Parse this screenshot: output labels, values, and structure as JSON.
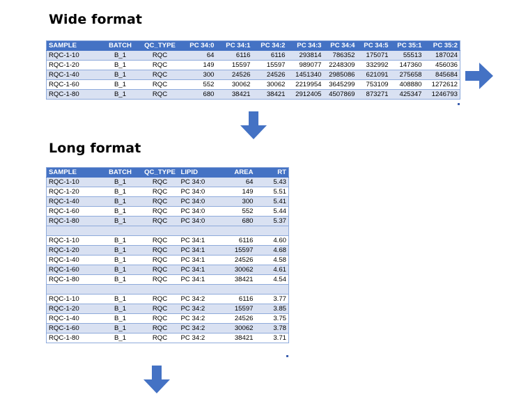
{
  "wide": {
    "heading": "Wide format",
    "columns": [
      "SAMPLE",
      "BATCH",
      "QC_TYPE",
      "PC 34:0",
      "PC 34:1",
      "PC 34:2",
      "PC 34:3",
      "PC 34:4",
      "PC 34:5",
      "PC 35:1",
      "PC 35:2"
    ],
    "rows": [
      [
        "RQC-1-10",
        "B_1",
        "RQC",
        "64",
        "6116",
        "6116",
        "293814",
        "786352",
        "175071",
        "55513",
        "187024"
      ],
      [
        "RQC-1-20",
        "B_1",
        "RQC",
        "149",
        "15597",
        "15597",
        "989077",
        "2248309",
        "332992",
        "147360",
        "456036"
      ],
      [
        "RQC-1-40",
        "B_1",
        "RQC",
        "300",
        "24526",
        "24526",
        "1451340",
        "2985086",
        "621091",
        "275658",
        "845684"
      ],
      [
        "RQC-1-60",
        "B_1",
        "RQC",
        "552",
        "30062",
        "30062",
        "2219954",
        "3645299",
        "753109",
        "408880",
        "1272612"
      ],
      [
        "RQC-1-80",
        "B_1",
        "RQC",
        "680",
        "38421",
        "38421",
        "2912405",
        "4507869",
        "873271",
        "425347",
        "1246793"
      ]
    ]
  },
  "long": {
    "heading": "Long format",
    "columns": [
      "SAMPLE",
      "BATCH",
      "QC_TYPE",
      "LIPID",
      "AREA",
      "RT"
    ],
    "groups": [
      [
        [
          "RQC-1-10",
          "B_1",
          "RQC",
          "PC 34:0",
          "64",
          "5.43"
        ],
        [
          "RQC-1-20",
          "B_1",
          "RQC",
          "PC 34:0",
          "149",
          "5.51"
        ],
        [
          "RQC-1-40",
          "B_1",
          "RQC",
          "PC 34:0",
          "300",
          "5.41"
        ],
        [
          "RQC-1-60",
          "B_1",
          "RQC",
          "PC 34:0",
          "552",
          "5.44"
        ],
        [
          "RQC-1-80",
          "B_1",
          "RQC",
          "PC 34:0",
          "680",
          "5.37"
        ]
      ],
      [
        [
          "RQC-1-10",
          "B_1",
          "RQC",
          "PC 34:1",
          "6116",
          "4.60"
        ],
        [
          "RQC-1-20",
          "B_1",
          "RQC",
          "PC 34:1",
          "15597",
          "4.68"
        ],
        [
          "RQC-1-40",
          "B_1",
          "RQC",
          "PC 34:1",
          "24526",
          "4.58"
        ],
        [
          "RQC-1-60",
          "B_1",
          "RQC",
          "PC 34:1",
          "30062",
          "4.61"
        ],
        [
          "RQC-1-80",
          "B_1",
          "RQC",
          "PC 34:1",
          "38421",
          "4.54"
        ]
      ],
      [
        [
          "RQC-1-10",
          "B_1",
          "RQC",
          "PC 34:2",
          "6116",
          "3.77"
        ],
        [
          "RQC-1-20",
          "B_1",
          "RQC",
          "PC 34:2",
          "15597",
          "3.85"
        ],
        [
          "RQC-1-40",
          "B_1",
          "RQC",
          "PC 34:2",
          "24526",
          "3.75"
        ],
        [
          "RQC-1-60",
          "B_1",
          "RQC",
          "PC 34:2",
          "30062",
          "3.78"
        ],
        [
          "RQC-1-80",
          "B_1",
          "RQC",
          "PC 34:2",
          "38421",
          "3.71"
        ]
      ]
    ]
  },
  "icons": {
    "arrow_right": "arrow-right-icon",
    "arrow_down": "arrow-down-icon"
  },
  "colors": {
    "header_bg": "#4472c4",
    "band_bg": "#d9e1f2",
    "arrow": "#4472c4"
  }
}
